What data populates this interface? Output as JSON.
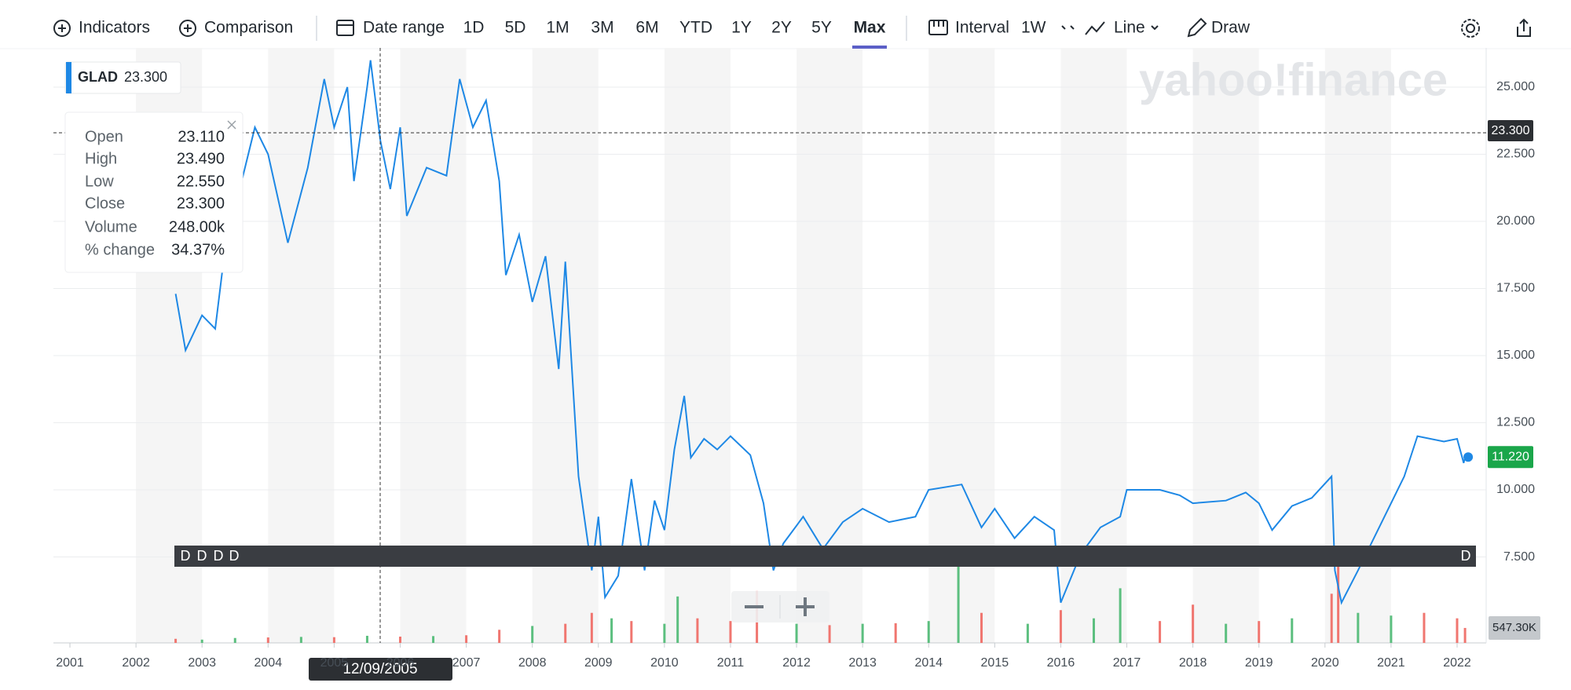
{
  "toolbar": {
    "indicators": "Indicators",
    "comparison": "Comparison",
    "date_range": "Date range",
    "ranges": [
      "1D",
      "5D",
      "1M",
      "3M",
      "6M",
      "YTD",
      "1Y",
      "2Y",
      "5Y",
      "Max"
    ],
    "active_range": "Max",
    "interval": "Interval",
    "interval_value": "1W",
    "chart_type": "Line",
    "draw": "Draw"
  },
  "chart_data": {
    "type": "line",
    "watermark": "yahoo!finance",
    "series": [
      {
        "name": "GLAD",
        "color": "#1e88e5",
        "x": [
          2002.6,
          2002.75,
          2003.0,
          2003.2,
          2003.35,
          2003.5,
          2003.8,
          2004.0,
          2004.3,
          2004.6,
          2004.85,
          2005.0,
          2005.2,
          2005.3,
          2005.5,
          2005.55,
          2005.7,
          2005.85,
          2006.0,
          2006.1,
          2006.4,
          2006.7,
          2006.9,
          2007.1,
          2007.3,
          2007.5,
          2007.6,
          2007.8,
          2008.0,
          2008.2,
          2008.4,
          2008.5,
          2008.7,
          2008.9,
          2009.0,
          2009.1,
          2009.3,
          2009.5,
          2009.7,
          2009.85,
          2010.0,
          2010.15,
          2010.3,
          2010.4,
          2010.6,
          2010.8,
          2011.0,
          2011.3,
          2011.5,
          2011.65,
          2011.8,
          2012.1,
          2012.4,
          2012.7,
          2013.0,
          2013.4,
          2013.8,
          2014.0,
          2014.5,
          2014.8,
          2015.0,
          2015.3,
          2015.6,
          2015.9,
          2016.0,
          2016.3,
          2016.6,
          2016.9,
          2017.0,
          2017.5,
          2017.8,
          2018.0,
          2018.5,
          2018.8,
          2019.0,
          2019.2,
          2019.5,
          2019.8,
          2020.1,
          2020.15,
          2020.25,
          2020.5,
          2020.9,
          2021.2,
          2021.4,
          2021.8,
          2022.0,
          2022.1,
          2022.12
        ],
        "values": [
          17.3,
          15.2,
          16.5,
          16.0,
          19.0,
          20.5,
          23.5,
          22.5,
          19.2,
          22.0,
          25.3,
          23.5,
          25.0,
          21.5,
          25.0,
          26.0,
          23.0,
          21.2,
          23.5,
          20.2,
          22.0,
          21.7,
          25.3,
          23.5,
          24.5,
          21.5,
          18.0,
          19.5,
          17.0,
          18.7,
          14.5,
          18.5,
          10.5,
          7.0,
          9.0,
          6.0,
          6.8,
          10.4,
          7.0,
          9.6,
          8.5,
          11.5,
          13.5,
          11.2,
          11.9,
          11.5,
          12.0,
          11.3,
          9.5,
          7.0,
          8.0,
          9.0,
          7.8,
          8.8,
          9.3,
          8.8,
          9.0,
          10.0,
          10.2,
          8.6,
          9.3,
          8.2,
          9.0,
          8.5,
          5.8,
          7.6,
          8.6,
          9.0,
          10.0,
          10.0,
          9.8,
          9.5,
          9.6,
          9.9,
          9.5,
          8.5,
          9.4,
          9.7,
          10.5,
          7.0,
          5.8,
          7.0,
          9.0,
          10.5,
          12.0,
          11.8,
          11.9,
          11.0,
          11.22
        ]
      }
    ],
    "volume": {
      "x": [
        2002.6,
        2003.0,
        2003.5,
        2004.0,
        2004.5,
        2005.0,
        2005.5,
        2006.0,
        2006.5,
        2007.0,
        2007.5,
        2008.0,
        2008.5,
        2008.9,
        2009.2,
        2009.5,
        2010.0,
        2010.2,
        2010.5,
        2011.0,
        2011.4,
        2012.0,
        2012.5,
        2013.0,
        2013.5,
        2014.0,
        2014.45,
        2014.8,
        2015.5,
        2016.0,
        2016.5,
        2016.9,
        2017.5,
        2018.0,
        2018.5,
        2019.0,
        2019.5,
        2020.1,
        2020.2,
        2020.5,
        2021.0,
        2021.5,
        2022.0,
        2022.12
      ],
      "values": [
        150,
        120,
        180,
        200,
        220,
        210,
        260,
        230,
        250,
        280,
        480,
        620,
        700,
        1100,
        900,
        800,
        700,
        1700,
        900,
        800,
        1900,
        700,
        650,
        700,
        720,
        800,
        3300,
        1100,
        700,
        1200,
        900,
        2000,
        800,
        1400,
        700,
        800,
        900,
        1800,
        2800,
        1100,
        1000,
        1100,
        900,
        547.3
      ],
      "colors": [
        "#f07670",
        "#5cbf7f",
        "#5cbf7f",
        "#f07670",
        "#5cbf7f",
        "#f07670",
        "#5cbf7f",
        "#f07670",
        "#5cbf7f",
        "#f07670",
        "#f07670",
        "#5cbf7f",
        "#f07670",
        "#f07670",
        "#5cbf7f",
        "#f07670",
        "#5cbf7f",
        "#5cbf7f",
        "#f07670",
        "#f07670",
        "#f07670",
        "#5cbf7f",
        "#f07670",
        "#5cbf7f",
        "#f07670",
        "#5cbf7f",
        "#5cbf7f",
        "#f07670",
        "#5cbf7f",
        "#f07670",
        "#5cbf7f",
        "#5cbf7f",
        "#f07670",
        "#f07670",
        "#5cbf7f",
        "#f07670",
        "#5cbf7f",
        "#f07670",
        "#f07670",
        "#5cbf7f",
        "#5cbf7f",
        "#f07670",
        "#f07670",
        "#f07670"
      ],
      "ylim": [
        0,
        5000
      ],
      "last_label": "547.30K"
    },
    "xlim": [
      2000.75,
      2022.44
    ],
    "xticks": [
      2001,
      2002,
      2003,
      2004,
      2005,
      2006,
      2007,
      2008,
      2009,
      2010,
      2011,
      2012,
      2013,
      2014,
      2015,
      2016,
      2017,
      2018,
      2019,
      2020,
      2021,
      2022
    ],
    "ylim": [
      4.3,
      26.46
    ],
    "yticks": [
      {
        "value": 7.5,
        "label": "7.500"
      },
      {
        "value": 10,
        "label": "10.000"
      },
      {
        "value": 12.5,
        "label": "12.500"
      },
      {
        "value": 15,
        "label": "15.000"
      },
      {
        "value": 17.5,
        "label": "17.500"
      },
      {
        "value": 20,
        "label": "20.000"
      },
      {
        "value": 22.5,
        "label": "22.500"
      },
      {
        "value": 25,
        "label": "25.000"
      }
    ],
    "grid": true,
    "last_price": {
      "value": 11.22,
      "label": "11.220"
    },
    "crosshair": {
      "date": "12/09/2005",
      "price": {
        "value": 23.3,
        "label": "23.300"
      }
    },
    "tooltip": [
      [
        "Open",
        "23.110"
      ],
      [
        "High",
        "23.490"
      ],
      [
        "Low",
        "22.550"
      ],
      [
        "Close",
        "23.300"
      ],
      [
        "Volume",
        "248.00k"
      ],
      [
        "% change",
        "34.37%"
      ]
    ],
    "dividends": [
      "D",
      "D",
      "D",
      "D",
      "D"
    ]
  }
}
